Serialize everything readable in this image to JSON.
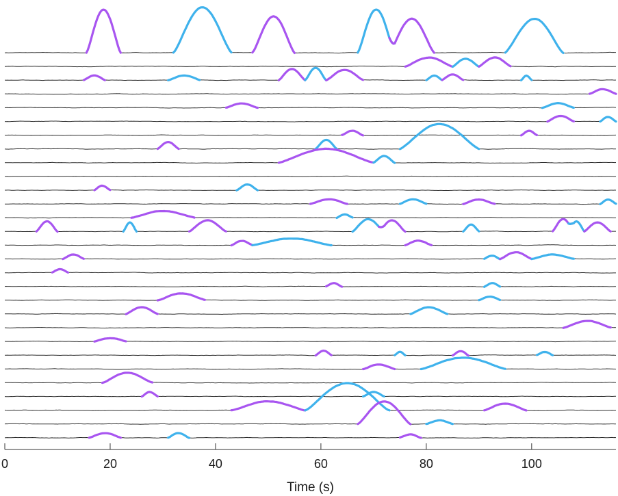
{
  "chart_data": {
    "type": "line",
    "title": "",
    "xlabel": "Time (s)",
    "ylabel": "",
    "xlim": [
      0,
      116
    ],
    "x_ticks": [
      0,
      20,
      40,
      60,
      80,
      100
    ],
    "grid": false,
    "legend": "none",
    "colors": {
      "trace": "#2b2b2b",
      "class_a": "#a855f0",
      "class_b": "#3fb2ec"
    },
    "trace_count": 29,
    "events": [
      {
        "trace": 0,
        "start": 15.5,
        "end": 22,
        "amp": 1.9,
        "class": "a"
      },
      {
        "trace": 0,
        "start": 32,
        "end": 43,
        "amp": 2.0,
        "class": "b"
      },
      {
        "trace": 0,
        "start": 47,
        "end": 55,
        "amp": 1.6,
        "class": "a"
      },
      {
        "trace": 0,
        "start": 67,
        "end": 74,
        "amp": 1.9,
        "class": "b"
      },
      {
        "trace": 0,
        "start": 73,
        "end": 81.5,
        "amp": 1.5,
        "class": "a"
      },
      {
        "trace": 0,
        "start": 95,
        "end": 106,
        "amp": 1.5,
        "class": "b"
      },
      {
        "trace": 1,
        "start": 76,
        "end": 85,
        "amp": 0.4,
        "class": "a"
      },
      {
        "trace": 1,
        "start": 85,
        "end": 90,
        "amp": 0.35,
        "class": "b"
      },
      {
        "trace": 1,
        "start": 90,
        "end": 96,
        "amp": 0.4,
        "class": "a"
      },
      {
        "trace": 2,
        "start": 15,
        "end": 19,
        "amp": 0.2,
        "class": "a"
      },
      {
        "trace": 2,
        "start": 31,
        "end": 37,
        "amp": 0.2,
        "class": "b"
      },
      {
        "trace": 2,
        "start": 52,
        "end": 57,
        "amp": 0.5,
        "class": "a"
      },
      {
        "trace": 2,
        "start": 57,
        "end": 61,
        "amp": 0.55,
        "class": "b"
      },
      {
        "trace": 2,
        "start": 61,
        "end": 68,
        "amp": 0.45,
        "class": "a"
      },
      {
        "trace": 2,
        "start": 80,
        "end": 83,
        "amp": 0.2,
        "class": "b"
      },
      {
        "trace": 2,
        "start": 83,
        "end": 87,
        "amp": 0.25,
        "class": "a"
      },
      {
        "trace": 2,
        "start": 98,
        "end": 100,
        "amp": 0.2,
        "class": "b"
      },
      {
        "trace": 3,
        "start": 111,
        "end": 116,
        "amp": 0.2,
        "class": "a"
      },
      {
        "trace": 4,
        "start": 42,
        "end": 48,
        "amp": 0.2,
        "class": "a"
      },
      {
        "trace": 4,
        "start": 102,
        "end": 108,
        "amp": 0.2,
        "class": "b"
      },
      {
        "trace": 5,
        "start": 103,
        "end": 108,
        "amp": 0.25,
        "class": "a"
      },
      {
        "trace": 5,
        "start": 113,
        "end": 116,
        "amp": 0.2,
        "class": "b"
      },
      {
        "trace": 6,
        "start": 64,
        "end": 68,
        "amp": 0.2,
        "class": "a"
      },
      {
        "trace": 6,
        "start": 98,
        "end": 101,
        "amp": 0.2,
        "class": "a"
      },
      {
        "trace": 7,
        "start": 29,
        "end": 33,
        "amp": 0.3,
        "class": "a"
      },
      {
        "trace": 7,
        "start": 59,
        "end": 63,
        "amp": 0.4,
        "class": "b"
      },
      {
        "trace": 7,
        "start": 75,
        "end": 90,
        "amp": 1.1,
        "class": "b"
      },
      {
        "trace": 8,
        "start": 52,
        "end": 70,
        "amp": 0.6,
        "class": "a"
      },
      {
        "trace": 8,
        "start": 70,
        "end": 74,
        "amp": 0.3,
        "class": "b"
      },
      {
        "trace": 10,
        "start": 17,
        "end": 20,
        "amp": 0.2,
        "class": "a"
      },
      {
        "trace": 10,
        "start": 44,
        "end": 48,
        "amp": 0.25,
        "class": "b"
      },
      {
        "trace": 11,
        "start": 58,
        "end": 65,
        "amp": 0.2,
        "class": "a"
      },
      {
        "trace": 11,
        "start": 75,
        "end": 80,
        "amp": 0.2,
        "class": "b"
      },
      {
        "trace": 11,
        "start": 87,
        "end": 93,
        "amp": 0.2,
        "class": "a"
      },
      {
        "trace": 11,
        "start": 113,
        "end": 116,
        "amp": 0.2,
        "class": "b"
      },
      {
        "trace": 12,
        "start": 24,
        "end": 36,
        "amp": 0.3,
        "class": "a"
      },
      {
        "trace": 12,
        "start": 63,
        "end": 66,
        "amp": 0.15,
        "class": "b"
      },
      {
        "trace": 13,
        "start": 6,
        "end": 10,
        "amp": 0.45,
        "class": "a"
      },
      {
        "trace": 13,
        "start": 22.5,
        "end": 25,
        "amp": 0.4,
        "class": "b"
      },
      {
        "trace": 13,
        "start": 35,
        "end": 42,
        "amp": 0.5,
        "class": "a"
      },
      {
        "trace": 13,
        "start": 66,
        "end": 72,
        "amp": 0.55,
        "class": "b"
      },
      {
        "trace": 13,
        "start": 71,
        "end": 76,
        "amp": 0.5,
        "class": "a"
      },
      {
        "trace": 13,
        "start": 87,
        "end": 90,
        "amp": 0.3,
        "class": "b"
      },
      {
        "trace": 13,
        "start": 104,
        "end": 108,
        "amp": 0.55,
        "class": "a"
      },
      {
        "trace": 13,
        "start": 107,
        "end": 110,
        "amp": 0.45,
        "class": "b"
      },
      {
        "trace": 13,
        "start": 110,
        "end": 115,
        "amp": 0.4,
        "class": "a"
      },
      {
        "trace": 14,
        "start": 43,
        "end": 47,
        "amp": 0.2,
        "class": "a"
      },
      {
        "trace": 14,
        "start": 47,
        "end": 62,
        "amp": 0.3,
        "class": "b"
      },
      {
        "trace": 14,
        "start": 76,
        "end": 81,
        "amp": 0.2,
        "class": "a"
      },
      {
        "trace": 15,
        "start": 11,
        "end": 15,
        "amp": 0.2,
        "class": "a"
      },
      {
        "trace": 15,
        "start": 91,
        "end": 94,
        "amp": 0.15,
        "class": "b"
      },
      {
        "trace": 15,
        "start": 94,
        "end": 100,
        "amp": 0.3,
        "class": "a"
      },
      {
        "trace": 15,
        "start": 100,
        "end": 108,
        "amp": 0.2,
        "class": "b"
      },
      {
        "trace": 16,
        "start": 9,
        "end": 12,
        "amp": 0.15,
        "class": "a"
      },
      {
        "trace": 17,
        "start": 61,
        "end": 64,
        "amp": 0.15,
        "class": "a"
      },
      {
        "trace": 17,
        "start": 91,
        "end": 94,
        "amp": 0.15,
        "class": "b"
      },
      {
        "trace": 18,
        "start": 29,
        "end": 38,
        "amp": 0.3,
        "class": "a"
      },
      {
        "trace": 18,
        "start": 90,
        "end": 94,
        "amp": 0.15,
        "class": "b"
      },
      {
        "trace": 19,
        "start": 23,
        "end": 29,
        "amp": 0.3,
        "class": "a"
      },
      {
        "trace": 19,
        "start": 77,
        "end": 84,
        "amp": 0.3,
        "class": "b"
      },
      {
        "trace": 20,
        "start": 106,
        "end": 115,
        "amp": 0.3,
        "class": "a"
      },
      {
        "trace": 21,
        "start": 17,
        "end": 23,
        "amp": 0.15,
        "class": "a"
      },
      {
        "trace": 22,
        "start": 59,
        "end": 62,
        "amp": 0.2,
        "class": "a"
      },
      {
        "trace": 22,
        "start": 74,
        "end": 76,
        "amp": 0.15,
        "class": "b"
      },
      {
        "trace": 22,
        "start": 85,
        "end": 88,
        "amp": 0.2,
        "class": "a"
      },
      {
        "trace": 22,
        "start": 101,
        "end": 104,
        "amp": 0.15,
        "class": "b"
      },
      {
        "trace": 23,
        "start": 68,
        "end": 74,
        "amp": 0.2,
        "class": "a"
      },
      {
        "trace": 23,
        "start": 79,
        "end": 95,
        "amp": 0.5,
        "class": "b"
      },
      {
        "trace": 24,
        "start": 18.5,
        "end": 28,
        "amp": 0.45,
        "class": "a"
      },
      {
        "trace": 25,
        "start": 26,
        "end": 29,
        "amp": 0.2,
        "class": "a"
      },
      {
        "trace": 25,
        "start": 68,
        "end": 72,
        "amp": 0.2,
        "class": "b"
      },
      {
        "trace": 26,
        "start": 43,
        "end": 57,
        "amp": 0.4,
        "class": "a"
      },
      {
        "trace": 26,
        "start": 57,
        "end": 73,
        "amp": 1.2,
        "class": "b"
      },
      {
        "trace": 26,
        "start": 91,
        "end": 99,
        "amp": 0.3,
        "class": "a"
      },
      {
        "trace": 27,
        "start": 67,
        "end": 77,
        "amp": 1.0,
        "class": "a"
      },
      {
        "trace": 27,
        "start": 80,
        "end": 85,
        "amp": 0.15,
        "class": "b"
      },
      {
        "trace": 28,
        "start": 16,
        "end": 22,
        "amp": 0.2,
        "class": "a"
      },
      {
        "trace": 28,
        "start": 31,
        "end": 35,
        "amp": 0.2,
        "class": "b"
      },
      {
        "trace": 28,
        "start": 75,
        "end": 79,
        "amp": 0.15,
        "class": "a"
      }
    ]
  }
}
